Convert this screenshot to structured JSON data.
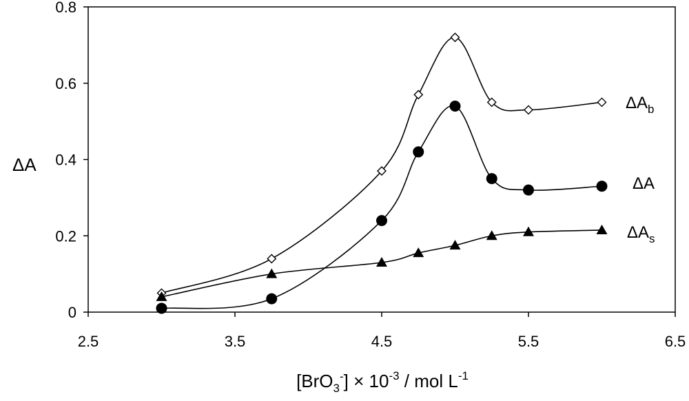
{
  "chart_data": {
    "type": "line",
    "title": "",
    "xlabel": "[BrO3-] × 10-3 / mol L-1",
    "ylabel": "ΔA",
    "xlim": [
      2.5,
      6.5
    ],
    "ylim": [
      0,
      0.8
    ],
    "x_ticks": [
      "2.5",
      "3.5",
      "4.5",
      "5.5",
      "6.5"
    ],
    "y_ticks": [
      "0",
      "0.2",
      "0.4",
      "0.6",
      "0.8"
    ],
    "grid": false,
    "legend": "inline labels at right end of each curve",
    "series": [
      {
        "name": "ΔAb",
        "marker": "open-diamond",
        "points": [
          [
            3.0,
            0.05
          ],
          [
            3.75,
            0.14
          ],
          [
            4.5,
            0.37
          ],
          [
            4.75,
            0.57
          ],
          [
            5.0,
            0.72
          ],
          [
            5.25,
            0.55
          ],
          [
            5.5,
            0.53
          ],
          [
            6.0,
            0.55
          ]
        ]
      },
      {
        "name": "ΔA",
        "marker": "filled-circle",
        "points": [
          [
            3.0,
            0.01
          ],
          [
            3.75,
            0.035
          ],
          [
            4.5,
            0.24
          ],
          [
            4.75,
            0.42
          ],
          [
            5.0,
            0.54
          ],
          [
            5.25,
            0.35
          ],
          [
            5.5,
            0.32
          ],
          [
            6.0,
            0.33
          ]
        ]
      },
      {
        "name": "ΔAs",
        "marker": "filled-triangle",
        "points": [
          [
            3.0,
            0.04
          ],
          [
            3.75,
            0.1
          ],
          [
            4.5,
            0.13
          ],
          [
            4.75,
            0.155
          ],
          [
            5.0,
            0.175
          ],
          [
            5.25,
            0.2
          ],
          [
            5.5,
            0.21
          ],
          [
            6.0,
            0.215
          ]
        ]
      }
    ]
  },
  "labels": {
    "y_title": "ΔA",
    "x_title_main": "[BrO",
    "x_title_sub": "3",
    "x_title_sup1": "-",
    "x_title_mid": "] × 10",
    "x_title_sup2": "-3",
    "x_title_unit": " / mol L",
    "x_title_sup3": "-1",
    "series_b_main": "ΔA",
    "series_b_sub": "b",
    "series_a_main": "ΔA",
    "series_s_main": "ΔA",
    "series_s_sub": "s"
  },
  "colors": {
    "line": "#000000",
    "marker_fill": "#000000",
    "open_marker_fill": "#ffffff"
  }
}
